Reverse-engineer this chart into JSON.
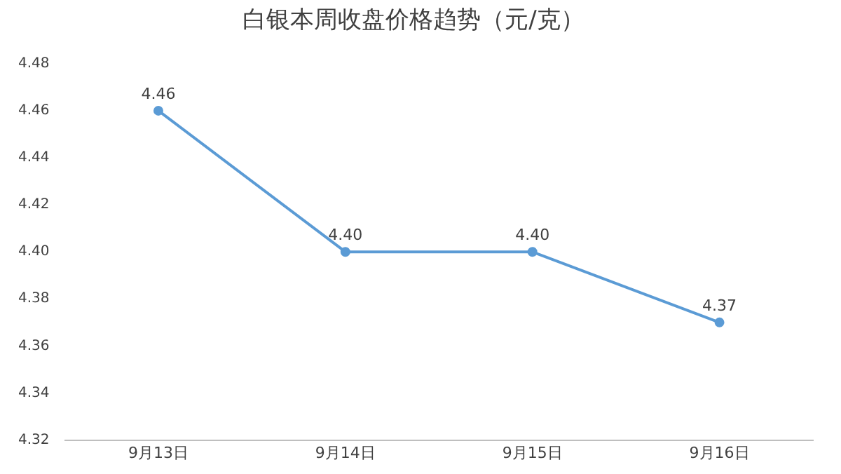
{
  "chart_data": {
    "type": "line",
    "title": "白银本周收盘价格趋势（元/克）",
    "categories": [
      "9月13日",
      "9月14日",
      "9月15日",
      "9月16日"
    ],
    "series": [
      {
        "color": "#5b9bd5",
        "values": [
          4.46,
          4.4,
          4.4,
          4.37
        ],
        "value_labels": [
          "4.46",
          "4.40",
          "4.40",
          "4.37"
        ]
      }
    ],
    "ylim": [
      4.32,
      4.48
    ],
    "yticks": [
      {
        "value": 4.32,
        "label": "4.32"
      },
      {
        "value": 4.34,
        "label": "4.34"
      },
      {
        "value": 4.36,
        "label": "4.36"
      },
      {
        "value": 4.38,
        "label": "4.38"
      },
      {
        "value": 4.4,
        "label": "4.40"
      },
      {
        "value": 4.42,
        "label": "4.42"
      },
      {
        "value": 4.44,
        "label": "4.44"
      },
      {
        "value": 4.46,
        "label": "4.46"
      },
      {
        "value": 4.48,
        "label": "4.48"
      }
    ],
    "grid": false,
    "legend": false,
    "marker": "circle",
    "line_style": "solid"
  }
}
